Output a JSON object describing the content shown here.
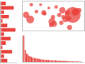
{
  "chart_data": [
    {
      "type": "bar",
      "orientation": "horizontal",
      "tick_labels": false,
      "grid": false,
      "color": "#e8413c",
      "categories": [
        null,
        null,
        null,
        null,
        null,
        null,
        null,
        null,
        null,
        null,
        null,
        null,
        null,
        null
      ],
      "values": [
        3,
        8,
        2,
        5,
        1,
        4,
        9,
        2,
        6,
        3,
        1,
        7,
        2,
        4
      ],
      "xlim": [
        0,
        10
      ],
      "xticks": []
    },
    {
      "type": "scatter",
      "marker": "circle",
      "tick_labels": false,
      "grid": false,
      "color": "#e8413c",
      "x": [
        -122,
        -118,
        -112,
        -105,
        -97,
        -95,
        -90,
        -87,
        -84,
        -80,
        -77,
        -74,
        -71,
        -96,
        -93,
        -82,
        -86,
        -100,
        -108,
        -117,
        -88,
        -81,
        -75,
        -98,
        -104
      ],
      "y": [
        38,
        34,
        41,
        40,
        32,
        30,
        38,
        42,
        34,
        27,
        38,
        41,
        42,
        36,
        45,
        40,
        36,
        44,
        47,
        47,
        31,
        35,
        40,
        29,
        39
      ],
      "sizes": [
        9,
        11,
        5,
        7,
        10,
        8,
        6,
        9,
        8,
        7,
        22,
        10,
        7,
        6,
        5,
        7,
        6,
        4,
        4,
        5,
        6,
        7,
        9,
        6,
        5
      ],
      "xlim": [
        -125,
        -66
      ],
      "ylim": [
        24,
        50
      ],
      "xticks": [],
      "yticks": []
    },
    {
      "type": "bar",
      "tick_labels": false,
      "grid": false,
      "color": "#e8413c",
      "categories": [
        null,
        null,
        null,
        null,
        null,
        null,
        null,
        null,
        null,
        null,
        null,
        null,
        null,
        null,
        null,
        null,
        null,
        null,
        null,
        null,
        null,
        null,
        null,
        null,
        null,
        null,
        null,
        null,
        null,
        null,
        null,
        null,
        null,
        null,
        null,
        null,
        null,
        null,
        null,
        null
      ],
      "values": [
        100,
        46,
        31,
        26,
        22,
        19,
        17,
        15,
        14,
        13,
        12,
        11,
        10,
        9,
        9,
        8,
        8,
        7,
        7,
        6,
        6,
        6,
        5,
        5,
        5,
        4,
        4,
        4,
        4,
        3,
        3,
        3,
        3,
        2,
        2,
        2,
        2,
        2,
        1,
        1
      ],
      "ylim": [
        0,
        100
      ],
      "yticks": []
    }
  ]
}
